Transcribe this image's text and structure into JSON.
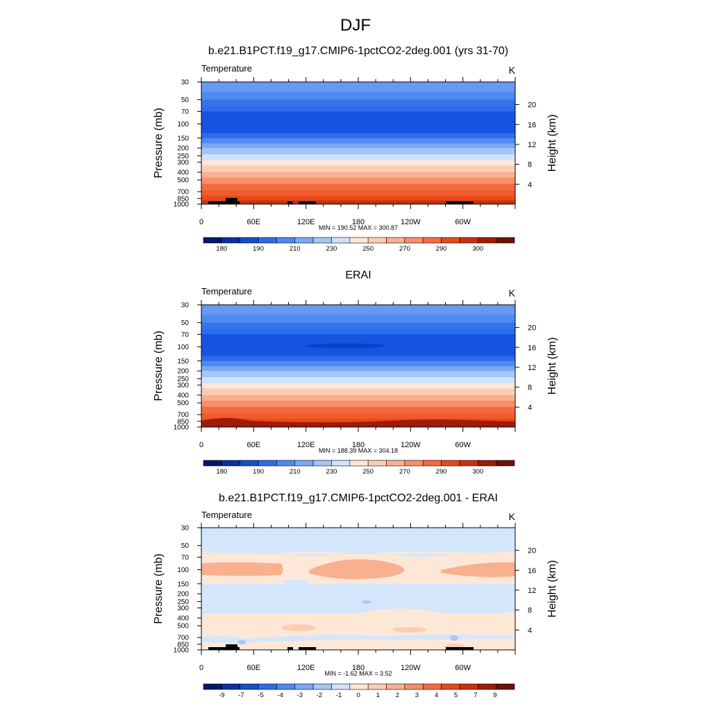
{
  "page_title": "DJF",
  "chart_data": [
    {
      "type": "heatmap",
      "title": "b.e21.B1PCT.f19_g17.CMIP6-1pctCO2-2deg.001 (yrs 31-70)",
      "variable_label": "Temperature",
      "units": "K",
      "ylabel_left": "Pressure (mb)",
      "ylabel_right": "Height (km)",
      "x_ticks": [
        "0",
        "60E",
        "120E",
        "180",
        "120W",
        "60W"
      ],
      "y_ticks_left": [
        "30",
        "50",
        "70",
        "100",
        "150",
        "200",
        "250",
        "300",
        "400",
        "500",
        "700",
        "850",
        "1000"
      ],
      "y_ticks_right": [
        "20",
        "16",
        "12",
        "8",
        "4"
      ],
      "stats": "MIN = 190.52  MAX = 300.87",
      "colorbar_labels": [
        "180",
        "190",
        "210",
        "230",
        "250",
        "270",
        "290",
        "300"
      ],
      "colorbar_colors": [
        "#06176a",
        "#0a30a0",
        "#1450c8",
        "#2d6bea",
        "#4f8aee",
        "#7aa9f2",
        "#a6c6f6",
        "#cfe3fb",
        "#fde8d8",
        "#fbcdb4",
        "#f9b08f",
        "#f68f69",
        "#f36a41",
        "#e64a18",
        "#c83010",
        "#a01a08",
        "#701000"
      ],
      "bands": [
        {
          "p": 30,
          "color": "#6699f0"
        },
        {
          "p": 40,
          "color": "#4f8aee"
        },
        {
          "p": 50,
          "color": "#3474ea"
        },
        {
          "p": 60,
          "color": "#2d6bea"
        },
        {
          "p": 70,
          "color": "#1454e0"
        },
        {
          "p": 130,
          "color": "#2d6bea"
        },
        {
          "p": 150,
          "color": "#4f8aee"
        },
        {
          "p": 175,
          "color": "#7aa9f2"
        },
        {
          "p": 200,
          "color": "#a6c6f6"
        },
        {
          "p": 240,
          "color": "#cfe3fb"
        },
        {
          "p": 285,
          "color": "#fde8d8"
        },
        {
          "p": 330,
          "color": "#fbcdb4"
        },
        {
          "p": 400,
          "color": "#f9b08f"
        },
        {
          "p": 470,
          "color": "#f68f69"
        },
        {
          "p": 560,
          "color": "#f36a41"
        },
        {
          "p": 680,
          "color": "#f25a2c"
        },
        {
          "p": 790,
          "color": "#e64a18"
        },
        {
          "p": 900,
          "color": "#c83010"
        }
      ]
    },
    {
      "type": "heatmap",
      "title": "ERAI",
      "variable_label": "Temperature",
      "units": "K",
      "ylabel_left": "Pressure (mb)",
      "ylabel_right": "Height (km)",
      "x_ticks": [
        "0",
        "60E",
        "120E",
        "180",
        "120W",
        "60W"
      ],
      "y_ticks_left": [
        "30",
        "50",
        "70",
        "100",
        "150",
        "200",
        "250",
        "300",
        "400",
        "500",
        "700",
        "850",
        "1000"
      ],
      "y_ticks_right": [
        "20",
        "16",
        "12",
        "8",
        "4"
      ],
      "stats": "MIN = 188.39  MAX = 304.18",
      "colorbar_labels": [
        "180",
        "190",
        "210",
        "230",
        "250",
        "270",
        "290",
        "300"
      ],
      "colorbar_colors": [
        "#06176a",
        "#0a30a0",
        "#1450c8",
        "#2d6bea",
        "#4f8aee",
        "#7aa9f2",
        "#a6c6f6",
        "#cfe3fb",
        "#fde8d8",
        "#fbcdb4",
        "#f9b08f",
        "#f68f69",
        "#f36a41",
        "#e64a18",
        "#c83010",
        "#a01a08",
        "#701000"
      ],
      "bands": [
        {
          "p": 30,
          "color": "#6699f0"
        },
        {
          "p": 40,
          "color": "#4f8aee"
        },
        {
          "p": 50,
          "color": "#3474ea"
        },
        {
          "p": 60,
          "color": "#2d6bea"
        },
        {
          "p": 70,
          "color": "#1454e0"
        },
        {
          "p": 130,
          "color": "#2d6bea"
        },
        {
          "p": 150,
          "color": "#4f8aee"
        },
        {
          "p": 175,
          "color": "#7aa9f2"
        },
        {
          "p": 200,
          "color": "#a6c6f6"
        },
        {
          "p": 240,
          "color": "#cfe3fb"
        },
        {
          "p": 285,
          "color": "#fde8d8"
        },
        {
          "p": 330,
          "color": "#fbcdb4"
        },
        {
          "p": 400,
          "color": "#f9b08f"
        },
        {
          "p": 470,
          "color": "#f68f69"
        },
        {
          "p": 560,
          "color": "#f36a41"
        },
        {
          "p": 680,
          "color": "#f25a2c"
        },
        {
          "p": 790,
          "color": "#e64a18"
        },
        {
          "p": 900,
          "color": "#c83010"
        }
      ]
    },
    {
      "type": "heatmap",
      "title": "b.e21.B1PCT.f19_g17.CMIP6-1pctCO2-2deg.001 - ERAI",
      "variable_label": "Temperature",
      "units": "K",
      "ylabel_left": "Pressure (mb)",
      "ylabel_right": "Height (km)",
      "x_ticks": [
        "0",
        "60E",
        "120E",
        "180",
        "120W",
        "60W"
      ],
      "y_ticks_left": [
        "30",
        "50",
        "70",
        "100",
        "150",
        "200",
        "250",
        "300",
        "400",
        "500",
        "700",
        "850",
        "1000"
      ],
      "y_ticks_right": [
        "20",
        "16",
        "12",
        "8",
        "4"
      ],
      "stats": "MIN =  -1.62  MAX =   3.52",
      "colorbar_labels": [
        "-9",
        "-7",
        "-5",
        "-4",
        "-3",
        "-2",
        "-1",
        "0",
        "1",
        "2",
        "3",
        "4",
        "5",
        "7",
        "9"
      ],
      "colorbar_colors": [
        "#06176a",
        "#0a30a0",
        "#1450c8",
        "#2d6bea",
        "#4f8aee",
        "#7aa9f2",
        "#a6c6f6",
        "#cfe3fb",
        "#fde8d8",
        "#fbcdb4",
        "#f9b08f",
        "#f68f69",
        "#f36a41",
        "#e64a18",
        "#c83010",
        "#a01a08",
        "#701000"
      ],
      "bands": [
        {
          "p": 30,
          "color": "#d3e6fb"
        },
        {
          "p": 60,
          "color": "#fde8d8"
        },
        {
          "p": 150,
          "color": "#d3e6fb"
        },
        {
          "p": 350,
          "color": "#fde8d8"
        }
      ]
    }
  ]
}
